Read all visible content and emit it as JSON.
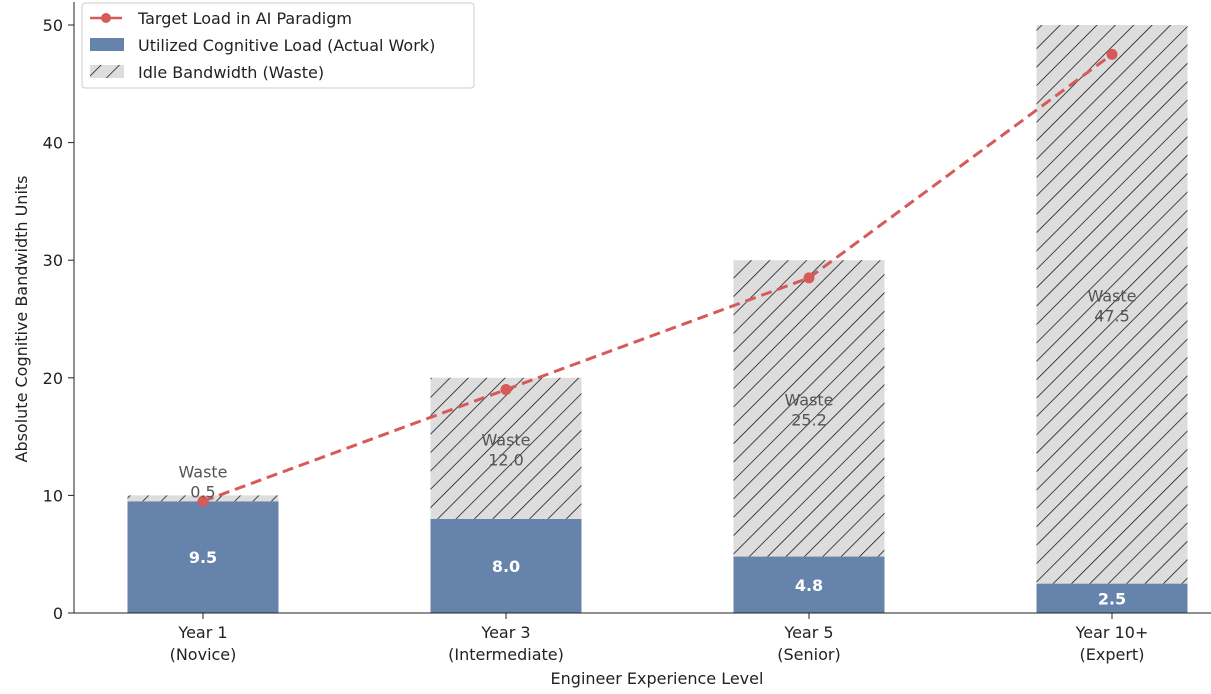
{
  "chart_data": {
    "type": "bar",
    "stacked": true,
    "categories": [
      {
        "line1": "Year 1",
        "line2": "(Novice)"
      },
      {
        "line1": "Year 3",
        "line2": "(Intermediate)"
      },
      {
        "line1": "Year 5",
        "line2": "(Senior)"
      },
      {
        "line1": "Year 10+",
        "line2": "(Expert)"
      }
    ],
    "series": [
      {
        "name": "Utilized Cognitive Load (Actual Work)",
        "values": [
          9.5,
          8.0,
          4.8,
          2.5
        ],
        "color": "#6583ab"
      },
      {
        "name": "Idle Bandwidth (Waste)",
        "values": [
          0.5,
          12.0,
          25.2,
          47.5
        ],
        "color": "#dddddd"
      }
    ],
    "line_series": {
      "name": "Target Load in AI Paradigm",
      "values": [
        9.5,
        19.0,
        28.5,
        47.5
      ],
      "color": "#d65a5a"
    },
    "utilized_labels": [
      "9.5",
      "8.0",
      "4.8",
      "2.5"
    ],
    "waste_word": "Waste",
    "waste_labels": [
      "0.5",
      "12.0",
      "25.2",
      "47.5"
    ],
    "xlabel": "Engineer Experience Level",
    "ylabel": "Absolute Cognitive Bandwidth Units",
    "ylim": [
      0,
      50
    ],
    "yticks": [
      "0",
      "10",
      "20",
      "30",
      "40",
      "50"
    ],
    "legend_position": "top-left"
  }
}
